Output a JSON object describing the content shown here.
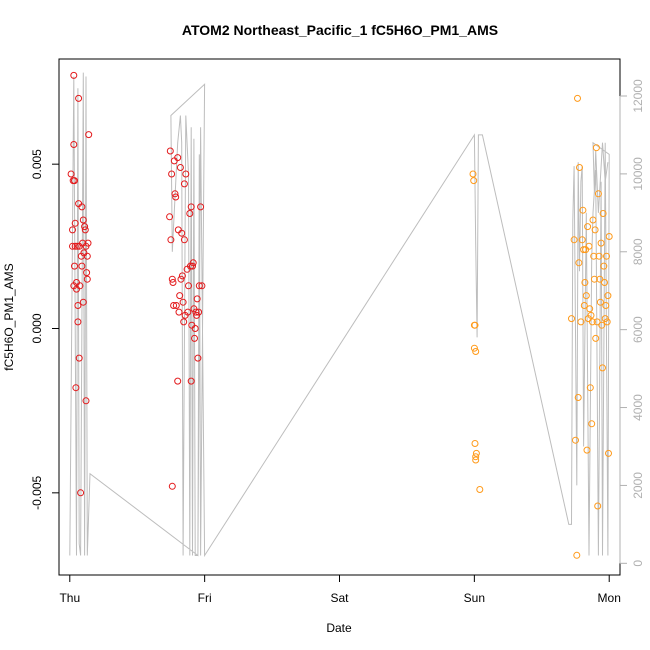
{
  "chart_data": {
    "type": "scatter",
    "title": "ATOM2 Northeast_Pacific_1 fC5H6O_PM1_AMS",
    "xlabel": "Date",
    "ylabel": "fC5H6O_PM1_AMS",
    "x_ticks": [
      "Thu",
      "Fri",
      "Sat",
      "Sun",
      "Mon"
    ],
    "xlim": [
      -0.08,
      4.08
    ],
    "ylim": [
      -0.0075,
      0.0082
    ],
    "y_ticks": [
      -0.005,
      0.0,
      0.005
    ],
    "y_tick_labels": [
      "-0.005",
      "0.000",
      "0.005"
    ],
    "y2lim": [
      -300,
      12950
    ],
    "y2_ticks": [
      0,
      2000,
      4000,
      6000,
      8000,
      10000,
      12000
    ],
    "y2_tick_labels": [
      "0",
      "2000",
      "4000",
      "6000",
      "8000",
      "10000",
      "12000"
    ],
    "grid": false,
    "colors": {
      "red": "#e31a1c",
      "orange": "#ff9a1a",
      "line": "#bdbdbd"
    },
    "series": [
      {
        "color": "#e31a1c",
        "x": [
          0.01,
          0.02,
          0.02,
          0.025,
          0.03,
          0.03,
          0.03,
          0.035,
          0.035,
          0.04,
          0.04,
          0.045,
          0.05,
          0.05,
          0.055,
          0.06,
          0.06,
          0.065,
          0.065,
          0.07,
          0.07,
          0.075,
          0.08,
          0.085,
          0.09,
          0.09,
          0.095,
          0.1,
          0.1,
          0.105,
          0.11,
          0.115,
          0.12,
          0.12,
          0.125,
          0.13,
          0.13,
          0.135,
          0.14
        ],
        "y": [
          0.0047,
          0.003,
          0.0025,
          0.0045,
          0.0056,
          0.0077,
          0.0013,
          0.0019,
          0.0045,
          0.0032,
          0.0025,
          -0.0018,
          0.0012,
          0.0014,
          0.0025,
          0.0007,
          0.0002,
          0.007,
          0.0038,
          -0.0009,
          0.0025,
          0.0013,
          -0.005,
          0.0022,
          0.0019,
          0.0037,
          0.0026,
          0.0033,
          0.0008,
          0.0023,
          0.0031,
          0.003,
          -0.0022,
          0.0025,
          0.0017,
          0.0015,
          0.0022,
          0.0026,
          0.0059
        ]
      },
      {
        "color": "#e31a1c",
        "x": [
          0.74,
          0.745,
          0.75,
          0.755,
          0.76,
          0.76,
          0.765,
          0.77,
          0.775,
          0.78,
          0.785,
          0.79,
          0.8,
          0.8,
          0.805,
          0.81,
          0.815,
          0.82,
          0.825,
          0.83,
          0.835,
          0.84,
          0.845,
          0.85,
          0.85,
          0.855,
          0.86,
          0.87,
          0.875,
          0.88,
          0.89,
          0.895,
          0.9,
          0.9,
          0.905,
          0.91,
          0.915,
          0.92,
          0.925,
          0.93,
          0.935,
          0.94,
          0.945,
          0.95,
          0.955,
          0.96,
          0.97,
          0.98
        ],
        "y": [
          0.0034,
          0.0054,
          0.0027,
          0.0047,
          0.0015,
          -0.0048,
          0.0014,
          0.0007,
          0.0051,
          0.0041,
          0.004,
          0.0007,
          0.0052,
          -0.0016,
          0.003,
          0.0005,
          0.001,
          0.0049,
          0.0015,
          0.0029,
          0.0016,
          0.0008,
          0.0002,
          0.0044,
          0.0027,
          0.0004,
          0.0047,
          0.0018,
          0.0005,
          0.0013,
          0.0035,
          0.0019,
          0.0037,
          -0.0016,
          0.0001,
          0.0019,
          0.002,
          0.0006,
          -0.0003,
          0.0,
          0.0005,
          0.0004,
          0.0009,
          -0.0009,
          0.0005,
          0.0013,
          0.0037,
          0.0013
        ]
      },
      {
        "color": "#ff9a1a",
        "x": [
          2.99,
          2.995,
          3.0,
          3.0,
          3.005,
          3.005,
          3.01,
          3.01,
          3.01,
          3.015,
          3.04
        ],
        "y": [
          0.0047,
          0.0045,
          0.0001,
          -0.0006,
          -0.0035,
          0.0001,
          -0.0007,
          -0.004,
          -0.0039,
          -0.0038,
          -0.0049
        ]
      },
      {
        "color": "#ff9a1a",
        "x": [
          3.72,
          3.74,
          3.75,
          3.76,
          3.765,
          3.77,
          3.775,
          3.78,
          3.79,
          3.8,
          3.805,
          3.81,
          3.815,
          3.82,
          3.825,
          3.83,
          3.835,
          3.84,
          3.845,
          3.85,
          3.855,
          3.86,
          3.865,
          3.87,
          3.875,
          3.88,
          3.885,
          3.89,
          3.895,
          3.9,
          3.905,
          3.91,
          3.915,
          3.92,
          3.925,
          3.93,
          3.935,
          3.94,
          3.945,
          3.95,
          3.955,
          3.96,
          3.965,
          3.97,
          3.975,
          3.98,
          3.985,
          3.99,
          3.995,
          4.0
        ],
        "y": [
          0.0003,
          0.0027,
          -0.0034,
          -0.0069,
          0.007,
          -0.0021,
          0.002,
          0.0049,
          0.0002,
          0.0027,
          0.0036,
          0.0024,
          0.0007,
          0.0014,
          0.0024,
          0.001,
          -0.0037,
          0.0031,
          0.0003,
          0.0025,
          0.0006,
          -0.0018,
          0.0004,
          -0.0029,
          0.0002,
          0.0033,
          0.0022,
          0.0015,
          0.003,
          -0.0003,
          0.0055,
          0.0002,
          -0.0054,
          0.0041,
          0.0022,
          0.0015,
          0.0008,
          0.0026,
          0.0001,
          -0.0012,
          0.0035,
          0.0019,
          0.0014,
          0.0003,
          0.0007,
          0.0022,
          0.0002,
          0.001,
          -0.0038,
          0.0028
        ]
      }
    ],
    "secondary_line": {
      "color": "#bdbdbd",
      "x": [
        0.0,
        0.03,
        0.05,
        0.06,
        0.07,
        0.08,
        0.1,
        0.11,
        0.12,
        0.13,
        0.15,
        0.95,
        0.96,
        0.97,
        1.0,
        0.75,
        0.76,
        0.8,
        0.82,
        0.83,
        0.84,
        0.86,
        0.88,
        0.89,
        0.9,
        0.91,
        0.92,
        0.93,
        0.95,
        0.97,
        1.0,
        3.0,
        3.01,
        3.02,
        3.03,
        3.06,
        3.7,
        3.72,
        3.73,
        3.74,
        3.76,
        3.77,
        3.78,
        3.79,
        3.8,
        3.81,
        3.83,
        3.85,
        3.87,
        3.88,
        3.9,
        3.92,
        3.94,
        3.95,
        3.97,
        3.99,
        4.0,
        3.88,
        3.89,
        3.9,
        3.92,
        3.95,
        3.97,
        3.99
      ],
      "y": [
        200,
        12500,
        200,
        12200,
        500,
        200,
        12600,
        200,
        12500,
        200,
        2300,
        200,
        10500,
        200,
        12300,
        11500,
        8000,
        10800,
        11500,
        10800,
        200,
        11500,
        10000,
        200,
        11200,
        200,
        10900,
        200,
        200,
        11200,
        200,
        11000,
        8200,
        5800,
        11000,
        11000,
        1000,
        1000,
        8800,
        10200,
        2000,
        10300,
        7500,
        9800,
        10200,
        3000,
        9000,
        200,
        7800,
        9000,
        10100,
        200,
        9800,
        200,
        10800,
        200,
        10500,
        10800,
        9500,
        10600,
        9000,
        10800,
        9800,
        10300
      ]
    }
  }
}
